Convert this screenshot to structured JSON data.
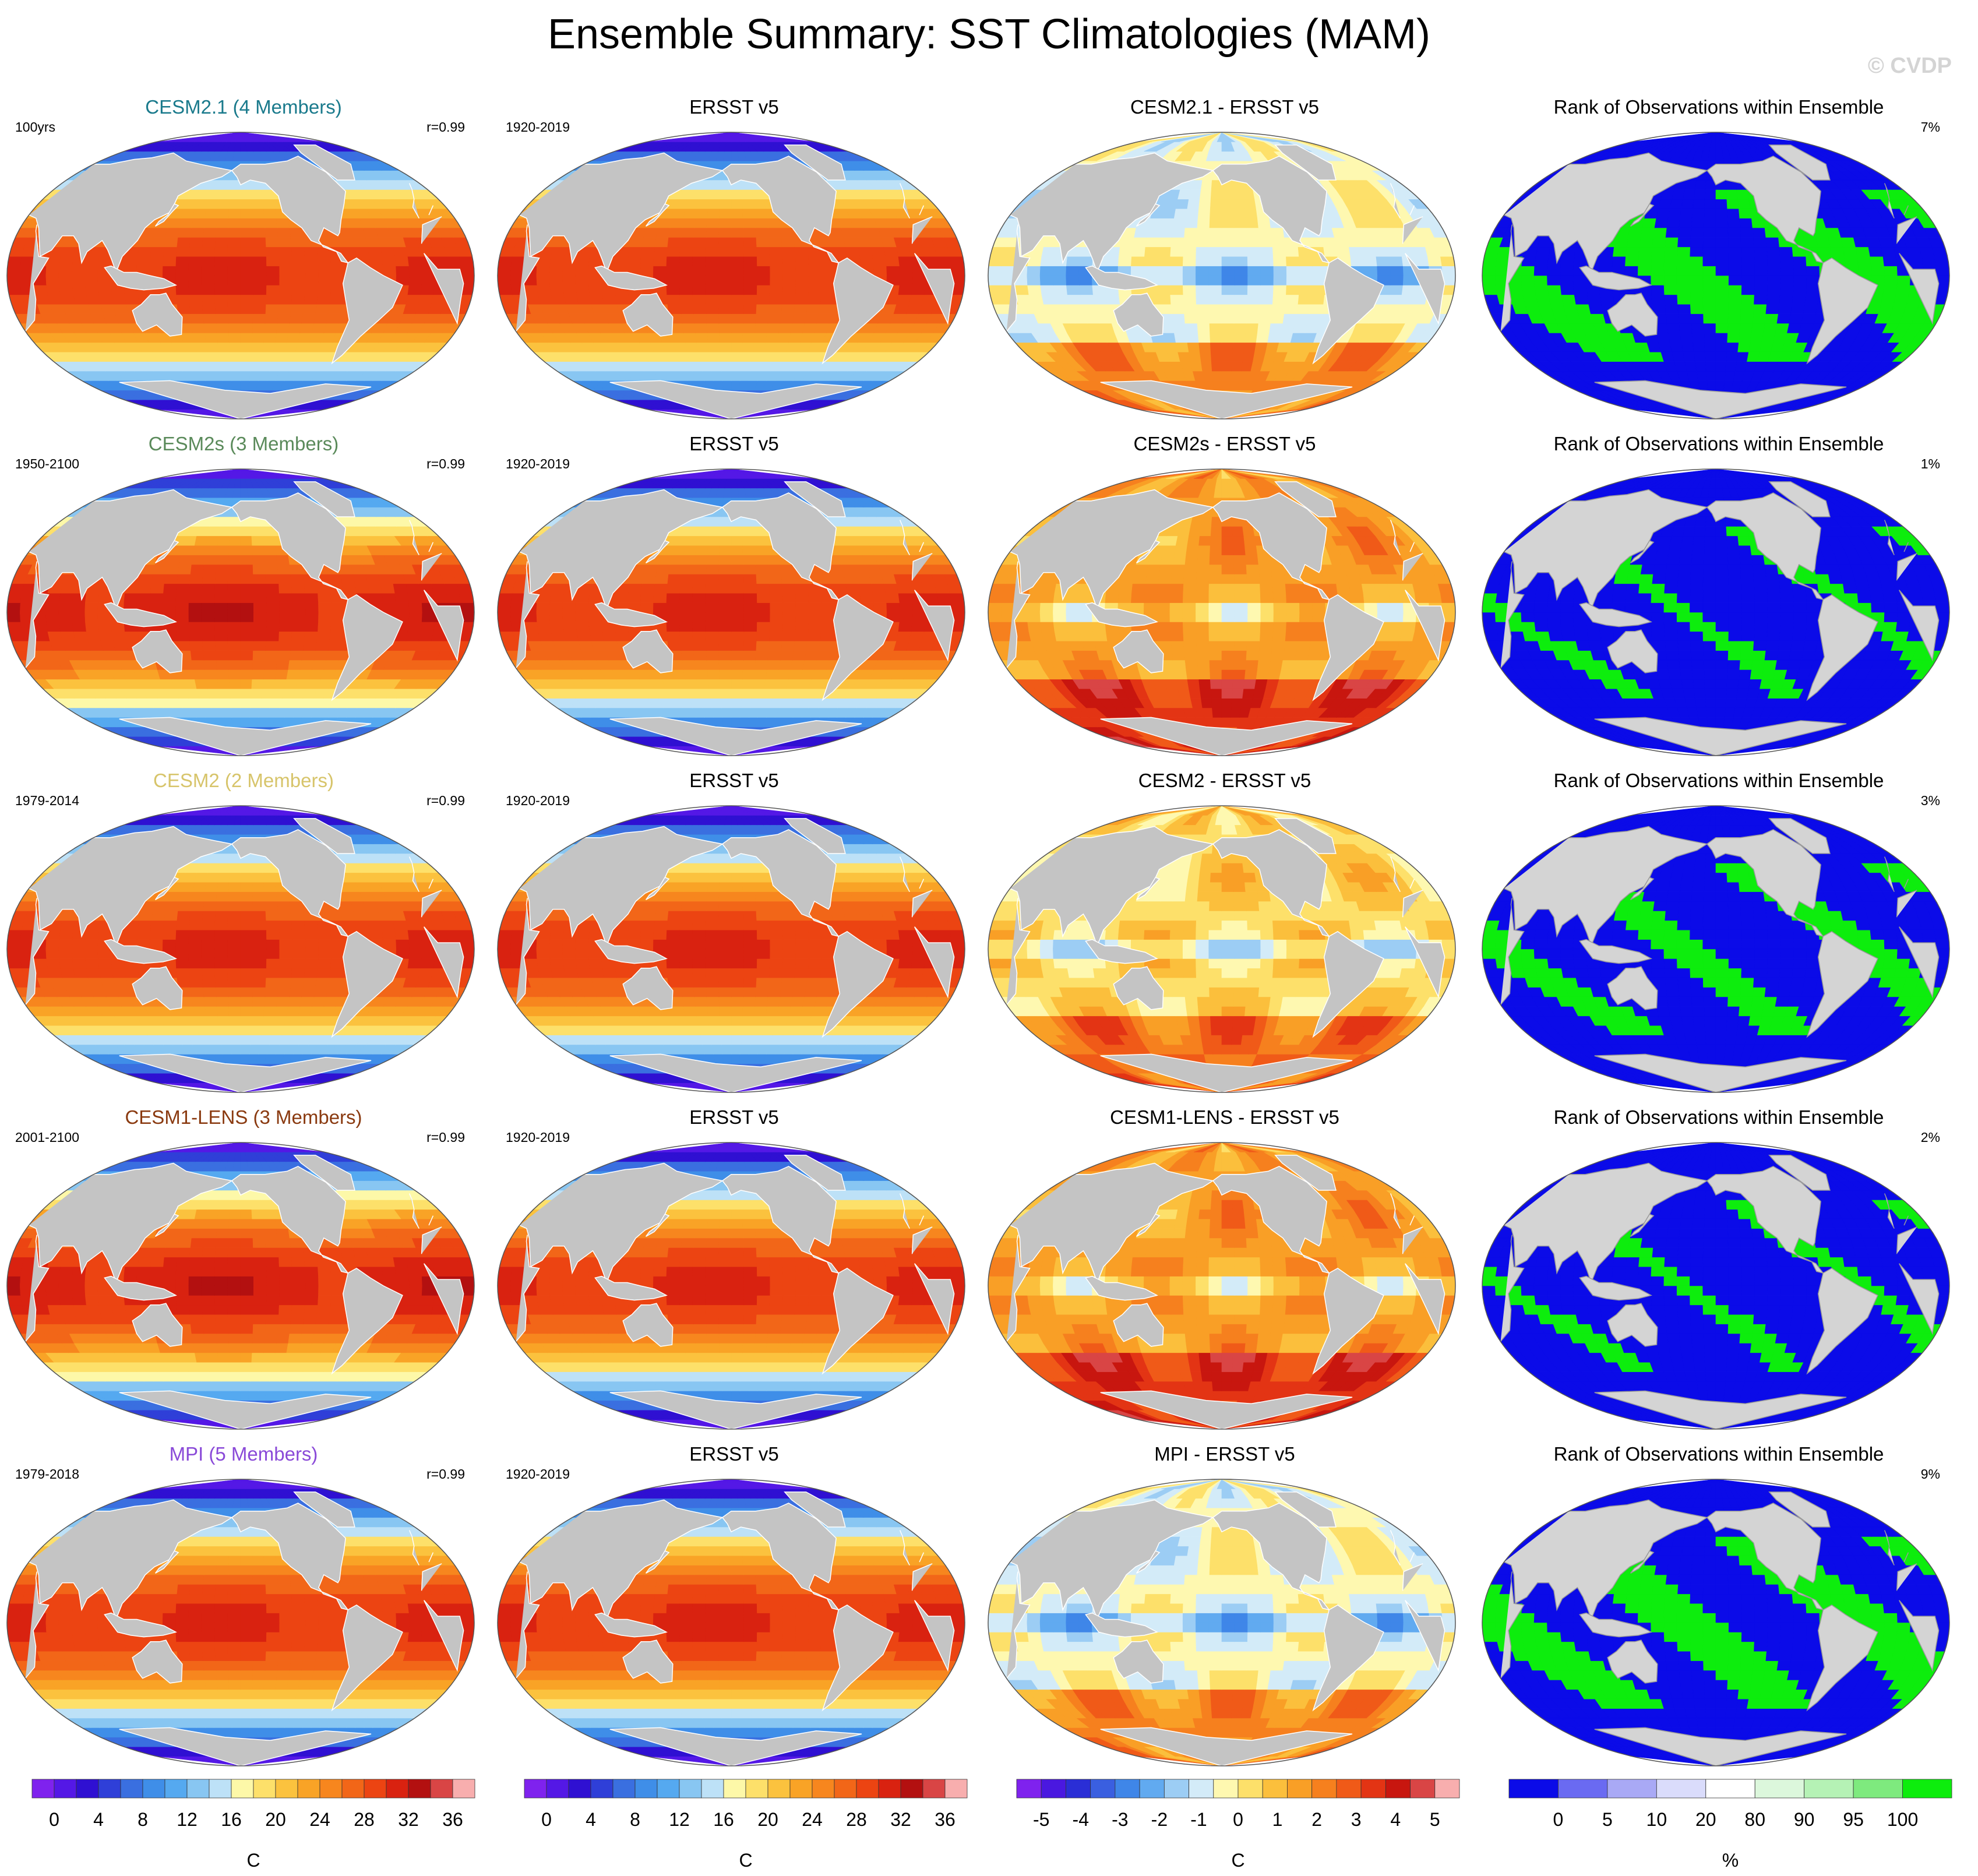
{
  "title": "Ensemble Summary: SST Climatologies (MAM)",
  "watermark": "© CVDP",
  "palettes": {
    "sst": [
      "#7f22ee",
      "#5418e6",
      "#2f10d2",
      "#2f3fd8",
      "#3a6fe0",
      "#3f8ee8",
      "#55a9f0",
      "#88c6f2",
      "#bde1f7",
      "#fdf8a8",
      "#fde06a",
      "#fbc23e",
      "#f9a326",
      "#f7861e",
      "#f26618",
      "#ec4412",
      "#d92210",
      "#b31010",
      "#d94545",
      "#f8aeae"
    ],
    "diff": [
      "#7f22ee",
      "#4a18e0",
      "#2a2ed6",
      "#3a5fe0",
      "#3f86e8",
      "#61aaf0",
      "#9ccdf4",
      "#d3ebf8",
      "#fef8b0",
      "#fde06a",
      "#fbbf3c",
      "#f99f26",
      "#f6801e",
      "#f05a18",
      "#e33414",
      "#c8160f",
      "#d94545",
      "#f8aeae"
    ],
    "rank": [
      "#0b0be8",
      "#6a6af2",
      "#a9a9f5",
      "#dadcfb",
      "#ffffff",
      "#dcf7dc",
      "#b5f2b5",
      "#7eea7e",
      "#0ded0d"
    ],
    "land": "#c4c4c4",
    "rank_land": "#d4d4d4"
  },
  "chart_data": [
    {
      "type": "heatmap",
      "title": "CESM2.1 (4 Members)",
      "title_color": "#1a7a8c",
      "left_note": "100yrs",
      "right_note": "r=0.99",
      "colorscale": "sst",
      "units": "C",
      "style": "model"
    },
    {
      "type": "heatmap",
      "title": "ERSST v5",
      "title_color": "#000000",
      "left_note": "1920-2019",
      "right_note": "",
      "colorscale": "sst",
      "units": "C",
      "style": "obs"
    },
    {
      "type": "heatmap",
      "title": "CESM2.1 - ERSST v5",
      "title_color": "#000000",
      "left_note": "",
      "right_note": "",
      "colorscale": "diff",
      "units": "C",
      "style": "diff_cool"
    },
    {
      "type": "heatmap",
      "title": "Rank of Observations within Ensemble",
      "title_color": "#000000",
      "left_note": "",
      "right_note": "7%",
      "colorscale": "rank",
      "units": "%",
      "style": "rank_many"
    },
    {
      "type": "heatmap",
      "title": "CESM2s (3 Members)",
      "title_color": "#5a8a5a",
      "left_note": "1950-2100",
      "right_note": "r=0.99",
      "colorscale": "sst",
      "units": "C",
      "style": "model_warm"
    },
    {
      "type": "heatmap",
      "title": "ERSST v5",
      "title_color": "#000000",
      "left_note": "1920-2019",
      "right_note": "",
      "colorscale": "sst",
      "units": "C",
      "style": "obs"
    },
    {
      "type": "heatmap",
      "title": "CESM2s - ERSST v5",
      "title_color": "#000000",
      "left_note": "",
      "right_note": "",
      "colorscale": "diff",
      "units": "C",
      "style": "diff_warm"
    },
    {
      "type": "heatmap",
      "title": "Rank of Observations within Ensemble",
      "title_color": "#000000",
      "left_note": "",
      "right_note": "1%",
      "colorscale": "rank",
      "units": "%",
      "style": "rank_few"
    },
    {
      "type": "heatmap",
      "title": "CESM2 (2 Members)",
      "title_color": "#d7c46a",
      "left_note": "1979-2014",
      "right_note": "r=0.99",
      "colorscale": "sst",
      "units": "C",
      "style": "model"
    },
    {
      "type": "heatmap",
      "title": "ERSST v5",
      "title_color": "#000000",
      "left_note": "1920-2019",
      "right_note": "",
      "colorscale": "sst",
      "units": "C",
      "style": "obs"
    },
    {
      "type": "heatmap",
      "title": "CESM2 - ERSST v5",
      "title_color": "#000000",
      "left_note": "",
      "right_note": "",
      "colorscale": "diff",
      "units": "C",
      "style": "diff_mixed"
    },
    {
      "type": "heatmap",
      "title": "Rank of Observations within Ensemble",
      "title_color": "#000000",
      "left_note": "",
      "right_note": "3%",
      "colorscale": "rank",
      "units": "%",
      "style": "rank_mid"
    },
    {
      "type": "heatmap",
      "title": "CESM1-LENS (3 Members)",
      "title_color": "#8a3a10",
      "left_note": "2001-2100",
      "right_note": "r=0.99",
      "colorscale": "sst",
      "units": "C",
      "style": "model_warm"
    },
    {
      "type": "heatmap",
      "title": "ERSST v5",
      "title_color": "#000000",
      "left_note": "1920-2019",
      "right_note": "",
      "colorscale": "sst",
      "units": "C",
      "style": "obs"
    },
    {
      "type": "heatmap",
      "title": "CESM1-LENS - ERSST v5",
      "title_color": "#000000",
      "left_note": "",
      "right_note": "",
      "colorscale": "diff",
      "units": "C",
      "style": "diff_warm"
    },
    {
      "type": "heatmap",
      "title": "Rank of Observations within Ensemble",
      "title_color": "#000000",
      "left_note": "",
      "right_note": "2%",
      "colorscale": "rank",
      "units": "%",
      "style": "rank_few"
    },
    {
      "type": "heatmap",
      "title": "MPI (5 Members)",
      "title_color": "#8a4ad8",
      "left_note": "1979-2018",
      "right_note": "r=0.99",
      "colorscale": "sst",
      "units": "C",
      "style": "model"
    },
    {
      "type": "heatmap",
      "title": "ERSST v5",
      "title_color": "#000000",
      "left_note": "1920-2019",
      "right_note": "",
      "colorscale": "sst",
      "units": "C",
      "style": "obs"
    },
    {
      "type": "heatmap",
      "title": "MPI - ERSST v5",
      "title_color": "#000000",
      "left_note": "",
      "right_note": "",
      "colorscale": "diff",
      "units": "C",
      "style": "diff_cool"
    },
    {
      "type": "heatmap",
      "title": "Rank of Observations within Ensemble",
      "title_color": "#000000",
      "left_note": "",
      "right_note": "9%",
      "colorscale": "rank",
      "units": "%",
      "style": "rank_many"
    }
  ],
  "colorbars": [
    {
      "palette": "sst",
      "labels": [
        "0",
        "4",
        "8",
        "12",
        "16",
        "20",
        "24",
        "28",
        "32",
        "36"
      ],
      "units": "C"
    },
    {
      "palette": "sst",
      "labels": [
        "0",
        "4",
        "8",
        "12",
        "16",
        "20",
        "24",
        "28",
        "32",
        "36"
      ],
      "units": "C"
    },
    {
      "palette": "diff",
      "labels": [
        "-5",
        "-4",
        "-3",
        "-2",
        "-1",
        "0",
        "1",
        "2",
        "3",
        "4",
        "5"
      ],
      "units": "C"
    },
    {
      "palette": "rank",
      "labels": [
        "0",
        "5",
        "10",
        "20",
        "80",
        "90",
        "95",
        "100"
      ],
      "units": "%"
    }
  ]
}
